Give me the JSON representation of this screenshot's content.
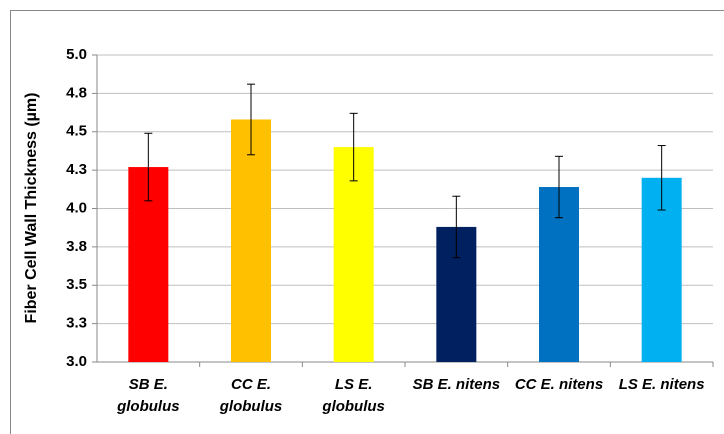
{
  "chart_data": {
    "type": "bar",
    "ylabel": "Fiber Cell Wall Thickness (µm)",
    "categories": [
      "SB E. globulus",
      "CC E. globulus",
      "LS E. globulus",
      "SB E. nitens",
      "CC E. nitens",
      "LS E. nitens"
    ],
    "values": [
      4.27,
      4.58,
      4.4,
      3.88,
      4.14,
      4.2
    ],
    "errors": [
      0.22,
      0.23,
      0.22,
      0.2,
      0.2,
      0.21
    ],
    "colors": [
      "#ff0000",
      "#ffc000",
      "#ffff00",
      "#002060",
      "#0070c0",
      "#00b0f0"
    ],
    "ylim": [
      3.0,
      5.0
    ],
    "yticks": [
      {
        "value": 3.0,
        "label": "3.0"
      },
      {
        "value": 3.25,
        "label": "3.3"
      },
      {
        "value": 3.5,
        "label": "3.5"
      },
      {
        "value": 3.75,
        "label": "3.8"
      },
      {
        "value": 4.0,
        "label": "4.0"
      },
      {
        "value": 4.25,
        "label": "4.3"
      },
      {
        "value": 4.5,
        "label": "4.5"
      },
      {
        "value": 4.75,
        "label": "4.8"
      },
      {
        "value": 5.0,
        "label": "5.0"
      }
    ],
    "grid": true
  }
}
